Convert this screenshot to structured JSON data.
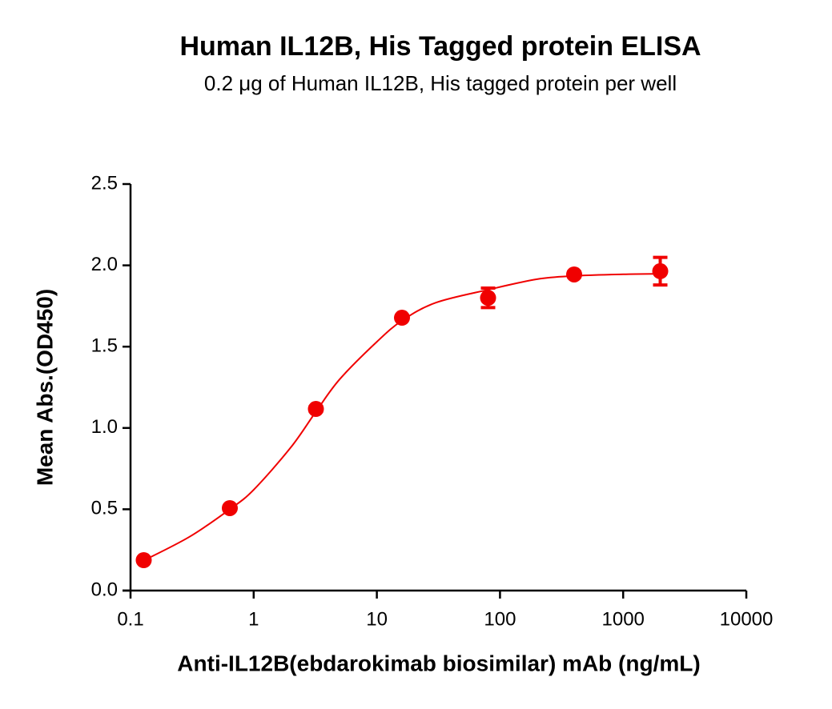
{
  "chart_data": {
    "type": "scatter",
    "title": "Human IL12B, His Tagged protein ELISA",
    "subtitle": "0.2 μg of Human IL12B, His tagged protein per well",
    "x_label": "Anti-IL12B(ebdarokimab biosimilar) mAb (ng/mL)",
    "y_label": "Mean Abs.(OD450)",
    "x": [
      0.128,
      0.64,
      3.2,
      16,
      80,
      400,
      2000
    ],
    "values": [
      0.187,
      0.507,
      1.117,
      1.678,
      1.8,
      1.944,
      1.964
    ],
    "errors": [
      0.01,
      0.01,
      0.015,
      0.01,
      0.06,
      0.015,
      0.085
    ],
    "color": "#f00000",
    "fit": {
      "x": [
        0.128,
        0.3,
        0.64,
        1,
        2,
        3.2,
        5,
        10,
        16,
        30,
        80,
        200,
        400,
        1000,
        2000
      ],
      "values": [
        0.185,
        0.33,
        0.5,
        0.62,
        0.88,
        1.1,
        1.3,
        1.53,
        1.66,
        1.77,
        1.85,
        1.915,
        1.935,
        1.945,
        1.948
      ]
    },
    "log_x": true,
    "grid": false,
    "xlim": [
      0.1,
      10000
    ],
    "xticks": [
      0.1,
      1,
      10,
      100,
      1000,
      10000
    ],
    "ylim": [
      0,
      2.5
    ],
    "yticks": [
      {
        "value": 0,
        "label": "0.0"
      },
      0.5,
      {
        "value": 1,
        "label": "1.0"
      },
      1.5,
      {
        "value": 2,
        "label": "2.0"
      },
      2.5
    ]
  }
}
